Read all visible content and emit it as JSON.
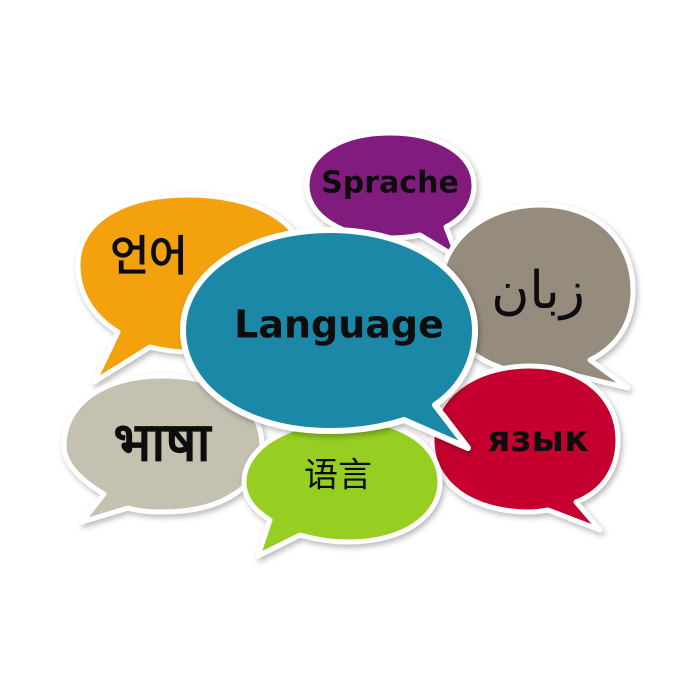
{
  "bubbles": {
    "sprache": {
      "text": "Sprache",
      "color": "#811a7e"
    },
    "korean": {
      "text": "언어",
      "color": "#f3a20e"
    },
    "farsi": {
      "text": "زبان",
      "color": "#968c7e"
    },
    "language": {
      "text": "Language",
      "color": "#1f88a8"
    },
    "hindi": {
      "text": "भाषा",
      "color": "#c4c1b1"
    },
    "russian": {
      "text": "язык",
      "color": "#c5062f"
    },
    "chinese": {
      "text": "语言",
      "color": "#96cf22"
    }
  },
  "colors": {
    "outline": "#ffffff",
    "text": "#111111",
    "shadow": "#b8b8b8"
  }
}
